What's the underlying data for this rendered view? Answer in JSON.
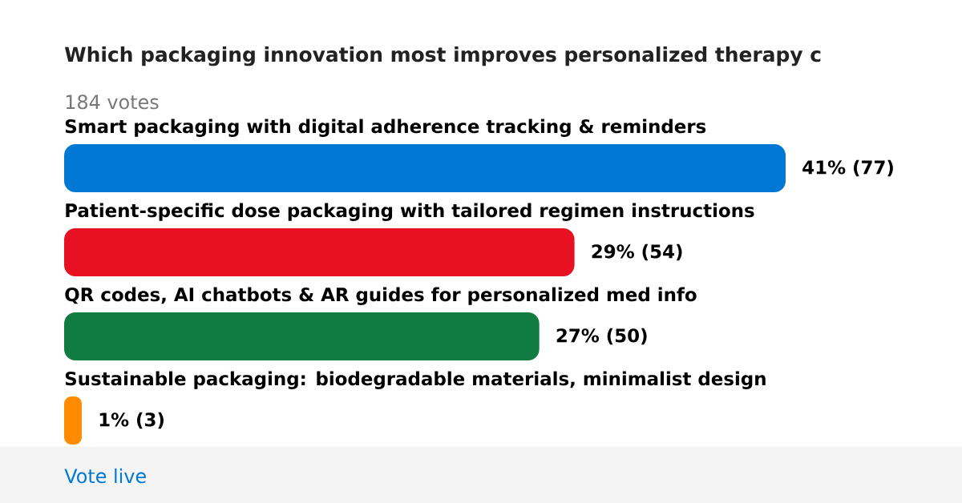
{
  "chart_data": {
    "type": "bar",
    "orientation": "horizontal",
    "title": "Which packaging innovation most improves personalized therapy c",
    "subtitle": "184 votes",
    "categories": [
      "Smart packaging with digital adherence tracking & reminders",
      "Patient-specific dose packaging with tailored regimen instructions",
      "QR codes, AI chatbots & AR guides for personalized med info",
      "Sustainable packaging: biodegradable materials, minimalist design"
    ],
    "values": [
      41,
      29,
      27,
      1
    ],
    "colors": [
      "#0078d4",
      "#e81123",
      "#107c41",
      "#ff8c00"
    ],
    "value_labels": [
      "41% (77)",
      "29% (54)",
      "27% (50)",
      "1% (3)"
    ],
    "annotations": [
      "Vote live"
    ]
  }
}
